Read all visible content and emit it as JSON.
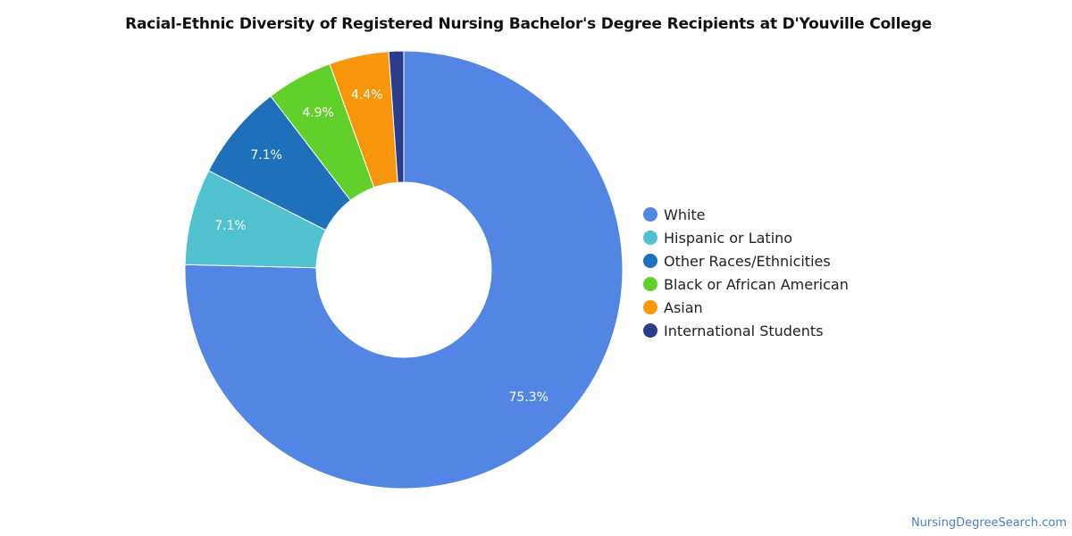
{
  "chart_data": {
    "type": "pie",
    "title": "Racial-Ethnic Diversity of Registered Nursing Bachelor's Degree Recipients at D'Youville College",
    "legend_position": "right",
    "slices": [
      {
        "label": "White",
        "value": 75.3,
        "display": "75.3%",
        "color": "#5386e4"
      },
      {
        "label": "Hispanic or Latino",
        "value": 7.1,
        "display": "7.1%",
        "color": "#4fc1cf"
      },
      {
        "label": "Other Races/Ethnicities",
        "value": 7.1,
        "display": "7.1%",
        "color": "#1f70bb"
      },
      {
        "label": "Black or African American",
        "value": 4.9,
        "display": "4.9%",
        "color": "#62d02a"
      },
      {
        "label": "Asian",
        "value": 4.4,
        "display": "4.4%",
        "color": "#f7960b"
      },
      {
        "label": "International Students",
        "value": 1.1,
        "display": "",
        "color": "#2a3c8c"
      }
    ]
  },
  "footer": {
    "source": "NursingDegreeSearch.com"
  }
}
